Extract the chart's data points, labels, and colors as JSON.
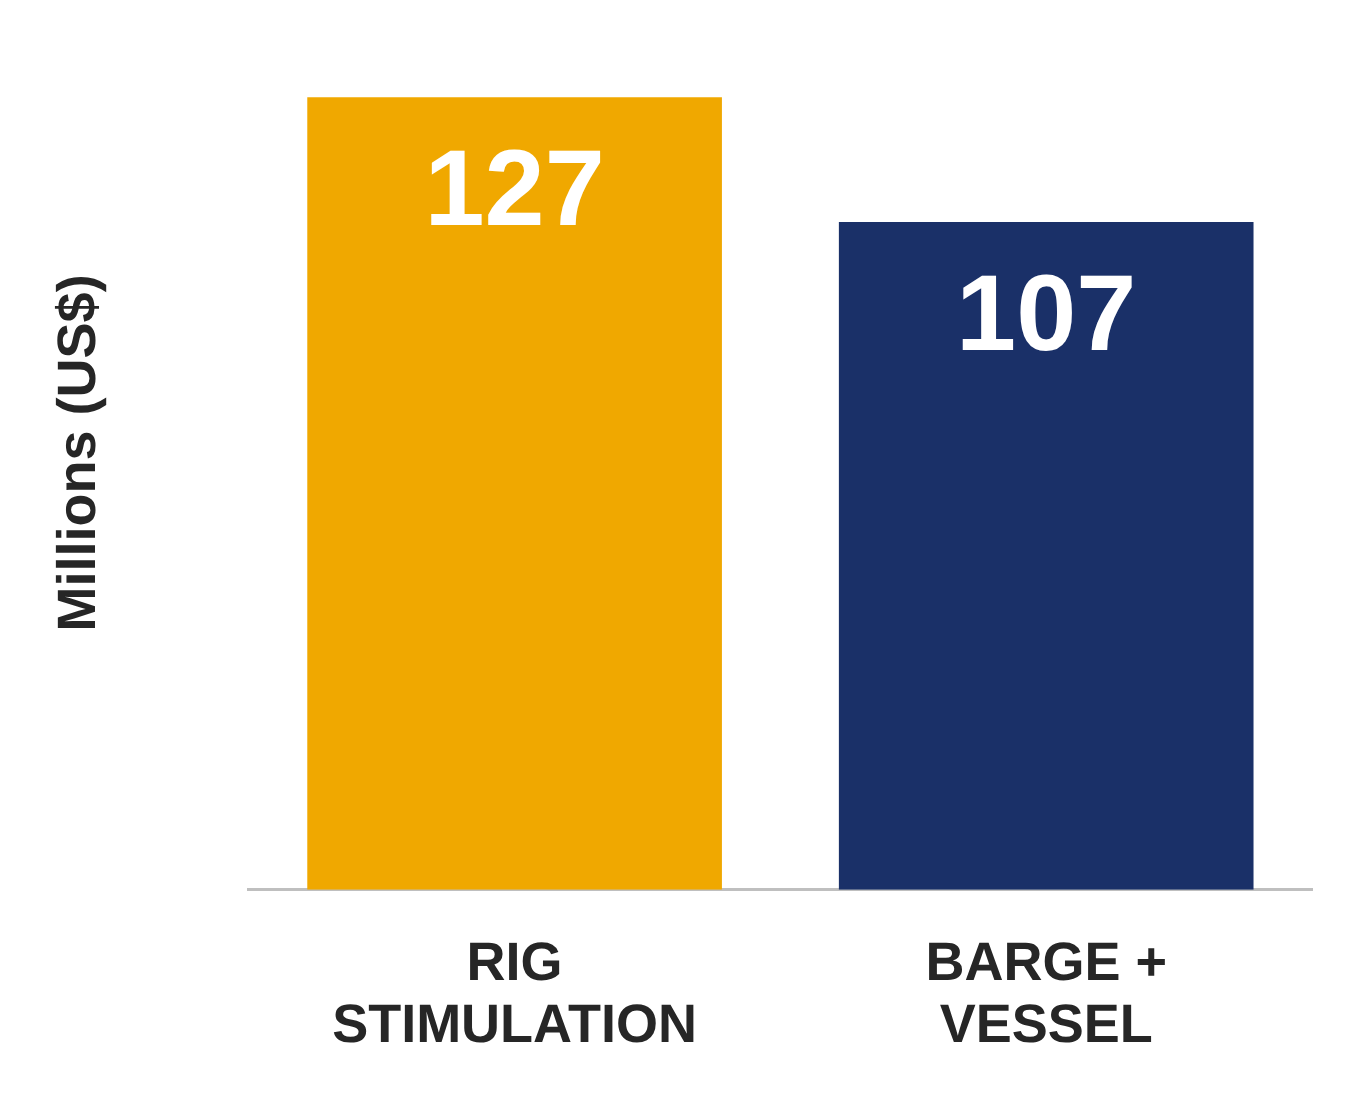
{
  "chart_data": {
    "type": "bar",
    "ylabel": "Millions (US$)",
    "categories": [
      "RIG STIMULATION",
      "BARGE + VESSEL"
    ],
    "values": [
      127,
      107
    ],
    "colors": [
      "#f0a800",
      "#1a3068"
    ],
    "data_labels": true,
    "grid": false,
    "legend": false
  }
}
